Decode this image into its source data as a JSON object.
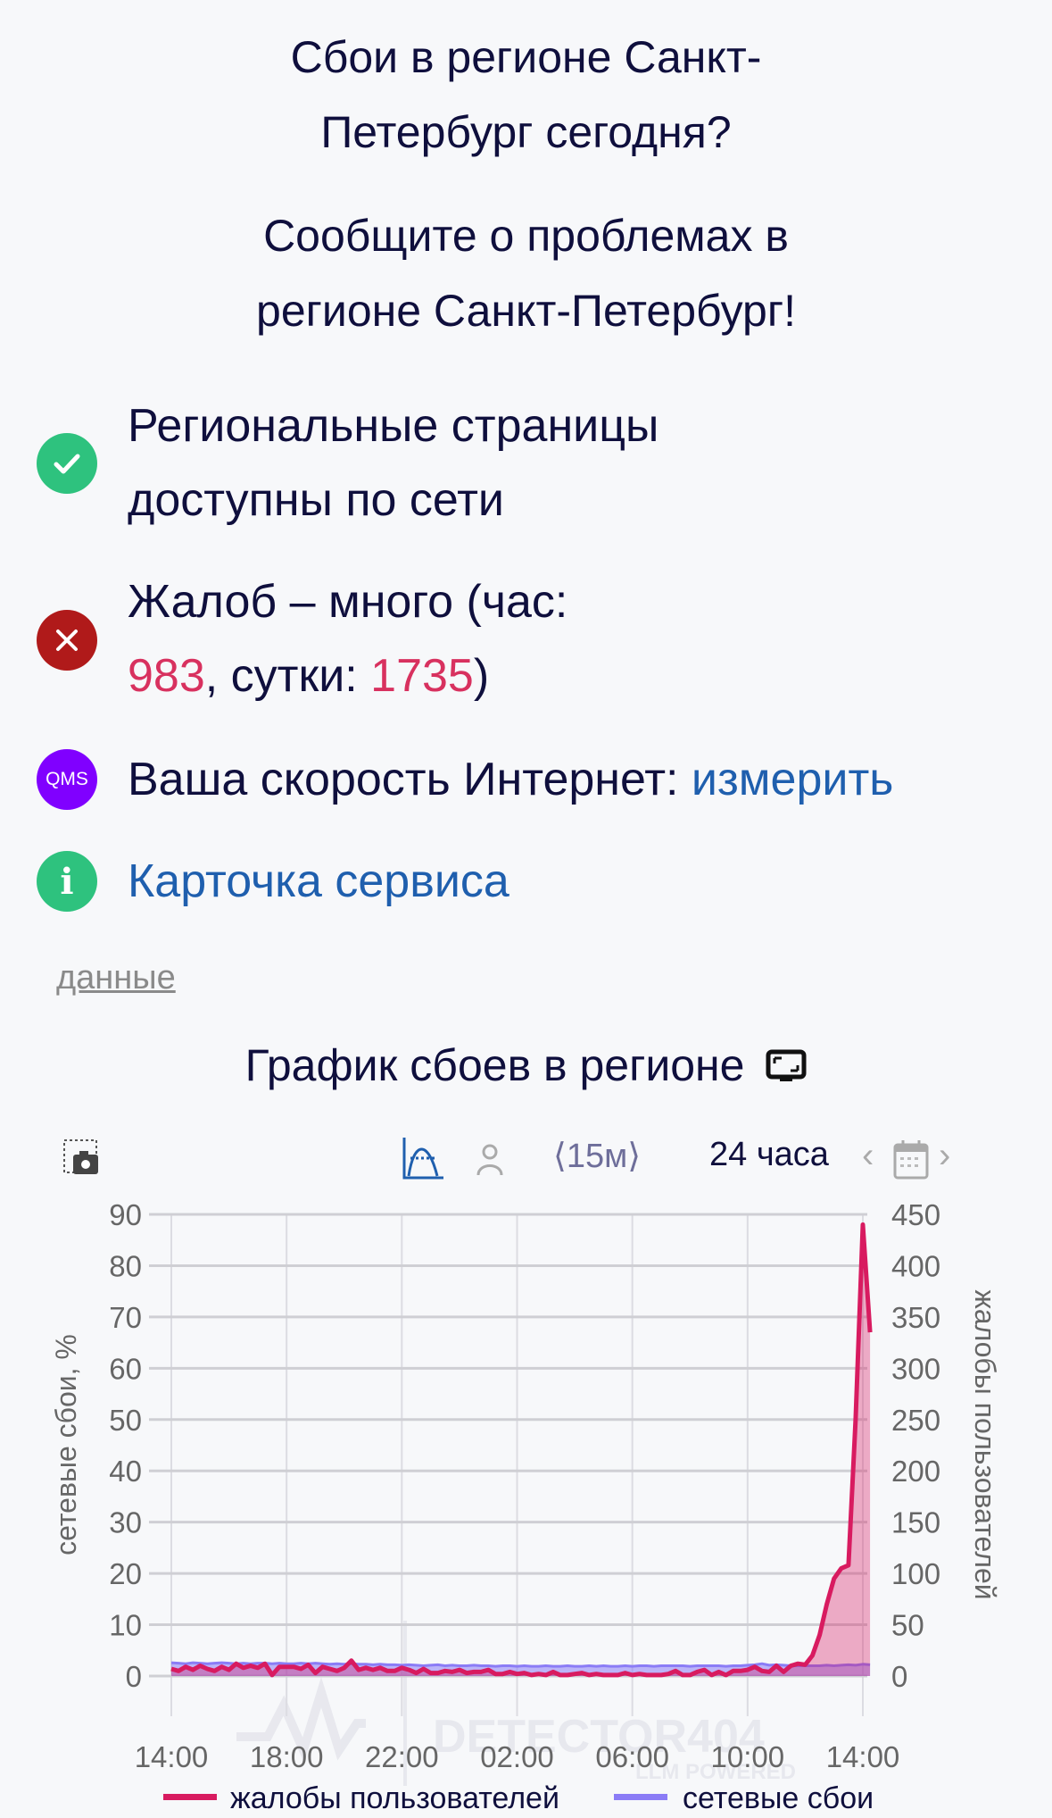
{
  "header": {
    "title_line1": "Сбои в регионе Санкт-",
    "title_line2": "Петербург сегодня?",
    "subtitle_line1": "Сообщите о проблемах в",
    "subtitle_line2": "регионе Санкт-Петербург!"
  },
  "status": {
    "pages_line1": "Региональные страницы",
    "pages_line2": "доступны по сети",
    "complaints_prefix": "Жалоб – много (час:",
    "complaints_hour": "983",
    "complaints_mid": ", сутки: ",
    "complaints_day": "1735",
    "complaints_suffix": ")",
    "speed_label": "Ваша скорость Интернет: ",
    "speed_link": "измерить",
    "qms_badge": "QMS",
    "service_card": "Карточка сервиса"
  },
  "data_link": "данные",
  "chart_title": "График сбоев в регионе",
  "toolbar": {
    "interval": "⟨15м⟩",
    "period": "24 часа"
  },
  "colors": {
    "complaints": "#d81b60",
    "network": "#8b7cf6",
    "ok": "#2ec27e",
    "error": "#b01a1a",
    "qms": "#8000ff",
    "link": "#1f5fae"
  },
  "watermark": {
    "brand": "DETECTOR404",
    "tag": "LLM POWERED"
  },
  "chart_data": {
    "type": "line",
    "x_ticks": [
      "14:00",
      "18:00",
      "22:00",
      "02:00",
      "06:00",
      "10:00",
      "14:00"
    ],
    "x_interval_minutes": 15,
    "ylabel_left": "сетевые сбои, %",
    "ylabel_right": "жалобы пользователей",
    "ylim_left": [
      0,
      90
    ],
    "ylim_right": [
      0,
      450
    ],
    "yticks_left": [
      0,
      10,
      20,
      30,
      40,
      50,
      60,
      70,
      80,
      90
    ],
    "yticks_right": [
      0,
      50,
      100,
      150,
      200,
      250,
      300,
      350,
      400,
      450
    ],
    "grid": true,
    "legend_position": "bottom",
    "series": [
      {
        "name": "жалобы пользователей",
        "axis": "right",
        "values": [
          7,
          5,
          9,
          6,
          10,
          7,
          5,
          9,
          6,
          12,
          8,
          10,
          8,
          12,
          1,
          9,
          9,
          9,
          7,
          11,
          3,
          9,
          7,
          5,
          8,
          15,
          6,
          8,
          6,
          8,
          5,
          5,
          8,
          6,
          3,
          7,
          3,
          3,
          5,
          4,
          6,
          3,
          4,
          4,
          6,
          2,
          2,
          4,
          2,
          3,
          1,
          2,
          1,
          4,
          1,
          1,
          2,
          3,
          1,
          2,
          1,
          1,
          1,
          3,
          1,
          2,
          1,
          1,
          1,
          2,
          5,
          1,
          1,
          4,
          6,
          1,
          4,
          1,
          5,
          5,
          6,
          9,
          5,
          4,
          10,
          4,
          10,
          12,
          11,
          20,
          40,
          70,
          95,
          105,
          108,
          250,
          440,
          335
        ]
      },
      {
        "name": "сетевые сбои",
        "axis": "left",
        "values": [
          2.6,
          2.5,
          2.4,
          2.6,
          2.5,
          2.4,
          2.5,
          2.6,
          2.5,
          2.4,
          2.5,
          2.4,
          2.5,
          2.5,
          2.4,
          2.5,
          2.4,
          2.4,
          2.5,
          2.4,
          2.5,
          2.4,
          2.3,
          2.4,
          2.3,
          2.4,
          2.3,
          2.3,
          2.2,
          2.3,
          2.2,
          2.2,
          2.1,
          2.2,
          2.1,
          2.0,
          2.1,
          2.2,
          2.0,
          2.1,
          2.0,
          2.0,
          2.1,
          2.0,
          2.0,
          1.9,
          2.0,
          2.0,
          1.9,
          2.0,
          1.9,
          1.9,
          2.0,
          1.9,
          1.9,
          2.0,
          1.9,
          1.9,
          2.0,
          1.9,
          2.0,
          1.9,
          1.9,
          2.0,
          1.9,
          2.0,
          2.0,
          1.9,
          2.0,
          2.0,
          2.0,
          2.0,
          1.9,
          2.0,
          2.0,
          2.0,
          2.0,
          1.9,
          2.0,
          2.0,
          2.1,
          2.2,
          2.4,
          2.1,
          2.2,
          2.1,
          2.0,
          2.0,
          2.0,
          2.0,
          2.0,
          2.1,
          2.0,
          2.1,
          2.2,
          2.1,
          2.3,
          2.2
        ]
      }
    ]
  }
}
